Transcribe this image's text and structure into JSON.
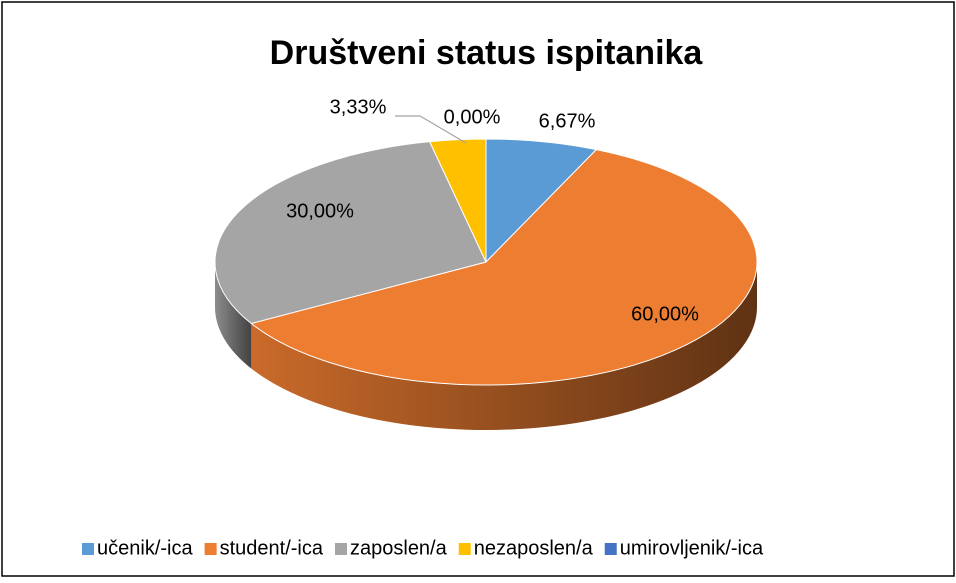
{
  "chart_data": {
    "type": "pie",
    "title": "Društveni status ispitanika",
    "categories": [
      "učenik/-ica",
      "student/-ica",
      "zaposlen/a",
      "nezaposlen/a",
      "umirovljenik/-ica"
    ],
    "values": [
      6.67,
      60,
      30,
      3.33,
      0
    ],
    "value_labels": [
      "6,67%",
      "60,00%",
      "30,00%",
      "3,33%",
      "0,00%"
    ],
    "colors": [
      "#5b9bd5",
      "#ed7d31",
      "#a5a5a5",
      "#ffc000",
      "#4472c4"
    ],
    "legend": "bottom"
  }
}
